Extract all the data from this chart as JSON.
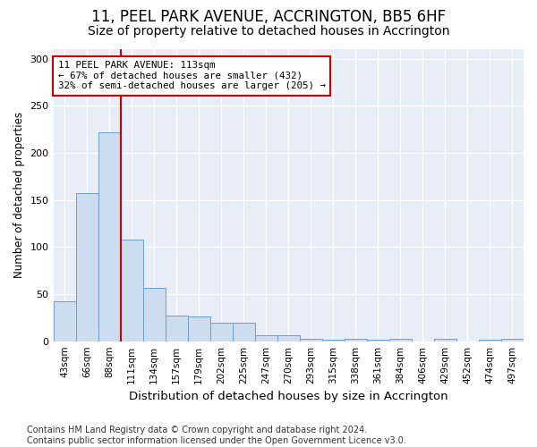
{
  "title": "11, PEEL PARK AVENUE, ACCRINGTON, BB5 6HF",
  "subtitle": "Size of property relative to detached houses in Accrington",
  "xlabel": "Distribution of detached houses by size in Accrington",
  "ylabel": "Number of detached properties",
  "categories": [
    "43sqm",
    "66sqm",
    "88sqm",
    "111sqm",
    "134sqm",
    "157sqm",
    "179sqm",
    "202sqm",
    "225sqm",
    "247sqm",
    "270sqm",
    "293sqm",
    "315sqm",
    "338sqm",
    "361sqm",
    "384sqm",
    "406sqm",
    "429sqm",
    "452sqm",
    "474sqm",
    "497sqm"
  ],
  "values": [
    42,
    157,
    222,
    108,
    57,
    27,
    26,
    20,
    20,
    6,
    6,
    3,
    2,
    3,
    2,
    3,
    0,
    3,
    0,
    2,
    3
  ],
  "bar_color": "#cddcef",
  "bar_edge_color": "#6a9fd8",
  "vline_x": 2.5,
  "vline_color": "#cc0000",
  "annotation_text": "11 PEEL PARK AVENUE: 113sqm\n← 67% of detached houses are smaller (432)\n32% of semi-detached houses are larger (205) →",
  "annotation_box_color": "#ffffff",
  "annotation_box_edge_color": "#cc0000",
  "ylim": [
    0,
    310
  ],
  "yticks": [
    0,
    50,
    100,
    150,
    200,
    250,
    300
  ],
  "footnote": "Contains HM Land Registry data © Crown copyright and database right 2024.\nContains public sector information licensed under the Open Government Licence v3.0.",
  "bg_color": "#e8eef8",
  "fig_bg_color": "#ffffff",
  "title_fontsize": 12,
  "subtitle_fontsize": 10,
  "xlabel_fontsize": 9.5,
  "ylabel_fontsize": 8.5,
  "footnote_fontsize": 7
}
